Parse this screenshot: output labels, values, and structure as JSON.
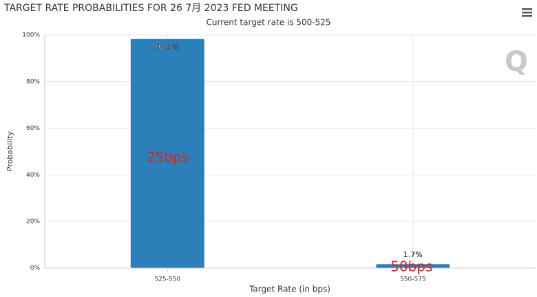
{
  "chart_data": {
    "type": "bar",
    "title": "TARGET RATE PROBABILITIES FOR 26 7月 2023 FED MEETING",
    "subtitle": "Current target rate is 500-525",
    "x_label": "Target Rate (in bps)",
    "y_label": "Probability",
    "categories": [
      "525-550",
      "550-575"
    ],
    "values": [
      98.3,
      1.7
    ],
    "value_labels": [
      "98.3%",
      "1.7%"
    ],
    "color": "#2b80b9",
    "ylim": [
      0,
      100
    ],
    "yticks": [
      {
        "value": 0,
        "label": "0%"
      },
      {
        "value": 20,
        "label": "20%"
      },
      {
        "value": 40,
        "label": "40%"
      },
      {
        "value": 60,
        "label": "60%"
      },
      {
        "value": 80,
        "label": "80%"
      },
      {
        "value": 100,
        "label": "100%"
      }
    ],
    "grid": true,
    "annotations": [
      "25bps",
      "50bps"
    ],
    "logo": "Q"
  }
}
